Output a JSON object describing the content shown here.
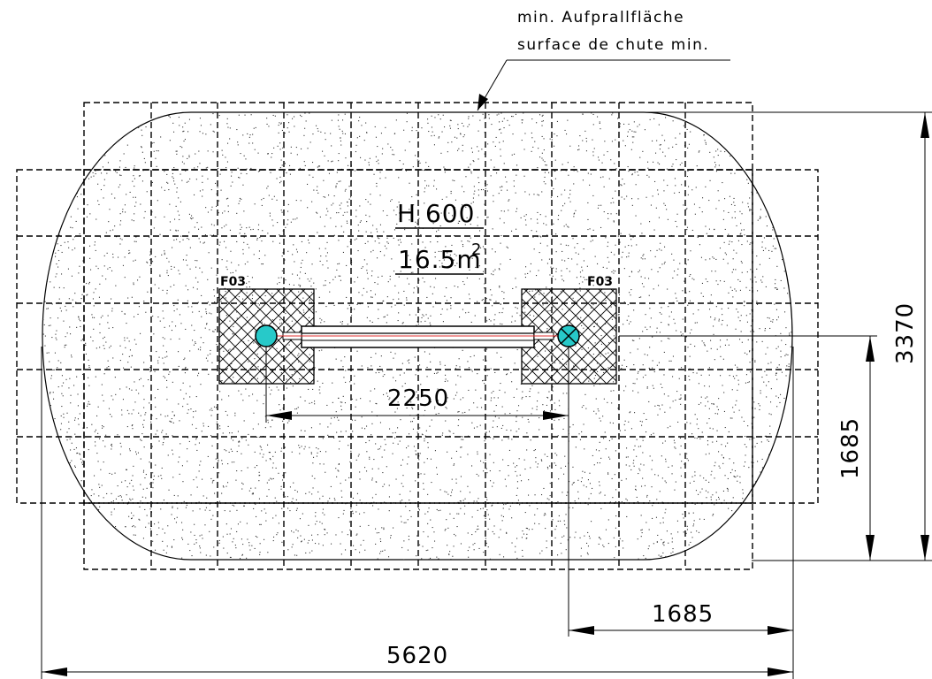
{
  "callout": {
    "line1": "min. Aufprallfläche",
    "line2": "surface de chute min."
  },
  "labels": {
    "height": "H 600",
    "area": "16.5m",
    "area_exponent": "2",
    "tag_left": "F03",
    "tag_right": "F03"
  },
  "dimensions": {
    "post_spacing": "2250",
    "total_height": "3370",
    "half_height": "1685",
    "half_width": "1685",
    "total_width": "5620"
  },
  "colors": {
    "post_fill": "#27c9c9",
    "beam_center_line": "#e23030",
    "line": "#000000",
    "surface_outline": "#000000"
  }
}
